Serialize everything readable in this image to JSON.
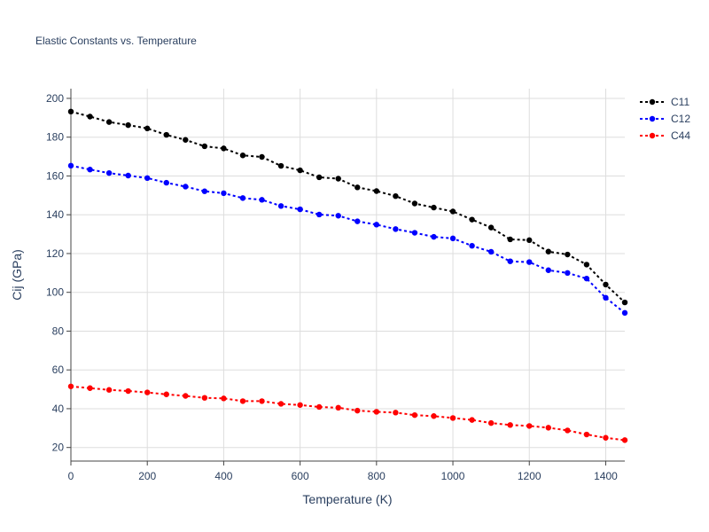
{
  "chart_data": {
    "type": "line",
    "title": "Elastic Constants vs. Temperature",
    "xlabel": "Temperature (K)",
    "ylabel": "Cij (GPa)",
    "xlim": [
      0,
      1450
    ],
    "ylim": [
      13,
      205
    ],
    "xticks": [
      0,
      200,
      400,
      600,
      800,
      1000,
      1200,
      1400
    ],
    "yticks": [
      20,
      40,
      60,
      80,
      100,
      120,
      140,
      160,
      180,
      200
    ],
    "grid": true,
    "legend_position": "top-right",
    "x": [
      0,
      50,
      100,
      150,
      200,
      250,
      300,
      350,
      400,
      450,
      500,
      550,
      600,
      650,
      700,
      750,
      800,
      850,
      900,
      950,
      1000,
      1050,
      1100,
      1150,
      1200,
      1250,
      1300,
      1350,
      1400,
      1450
    ],
    "series": [
      {
        "name": "C11",
        "color": "#000000",
        "values": [
          193.2,
          190.6,
          187.8,
          186.2,
          184.5,
          181.2,
          178.6,
          175.3,
          174.2,
          170.6,
          169.8,
          165.2,
          162.9,
          159.3,
          158.6,
          154.1,
          152.2,
          149.6,
          145.8,
          143.7,
          141.7,
          137.5,
          133.4,
          127.3,
          126.9,
          121.0,
          119.5,
          114.3,
          104.0,
          94.8
        ]
      },
      {
        "name": "C12",
        "color": "#0000ff",
        "values": [
          165.3,
          163.3,
          161.5,
          160.2,
          158.9,
          156.5,
          154.5,
          152.1,
          151.1,
          148.6,
          147.7,
          144.5,
          142.8,
          140.1,
          139.5,
          136.6,
          134.9,
          132.6,
          130.7,
          128.6,
          127.8,
          124.0,
          120.9,
          116.0,
          115.6,
          111.4,
          110.0,
          107.1,
          97.2,
          89.4
        ]
      },
      {
        "name": "C44",
        "color": "#ff0000",
        "values": [
          51.5,
          50.6,
          49.7,
          49.1,
          48.4,
          47.4,
          46.6,
          45.6,
          45.3,
          43.9,
          43.9,
          42.5,
          41.9,
          40.9,
          40.5,
          39.0,
          38.4,
          38.0,
          36.7,
          36.2,
          35.2,
          34.2,
          32.6,
          31.6,
          31.1,
          30.2,
          28.8,
          26.7,
          25.0,
          23.8
        ]
      }
    ]
  }
}
